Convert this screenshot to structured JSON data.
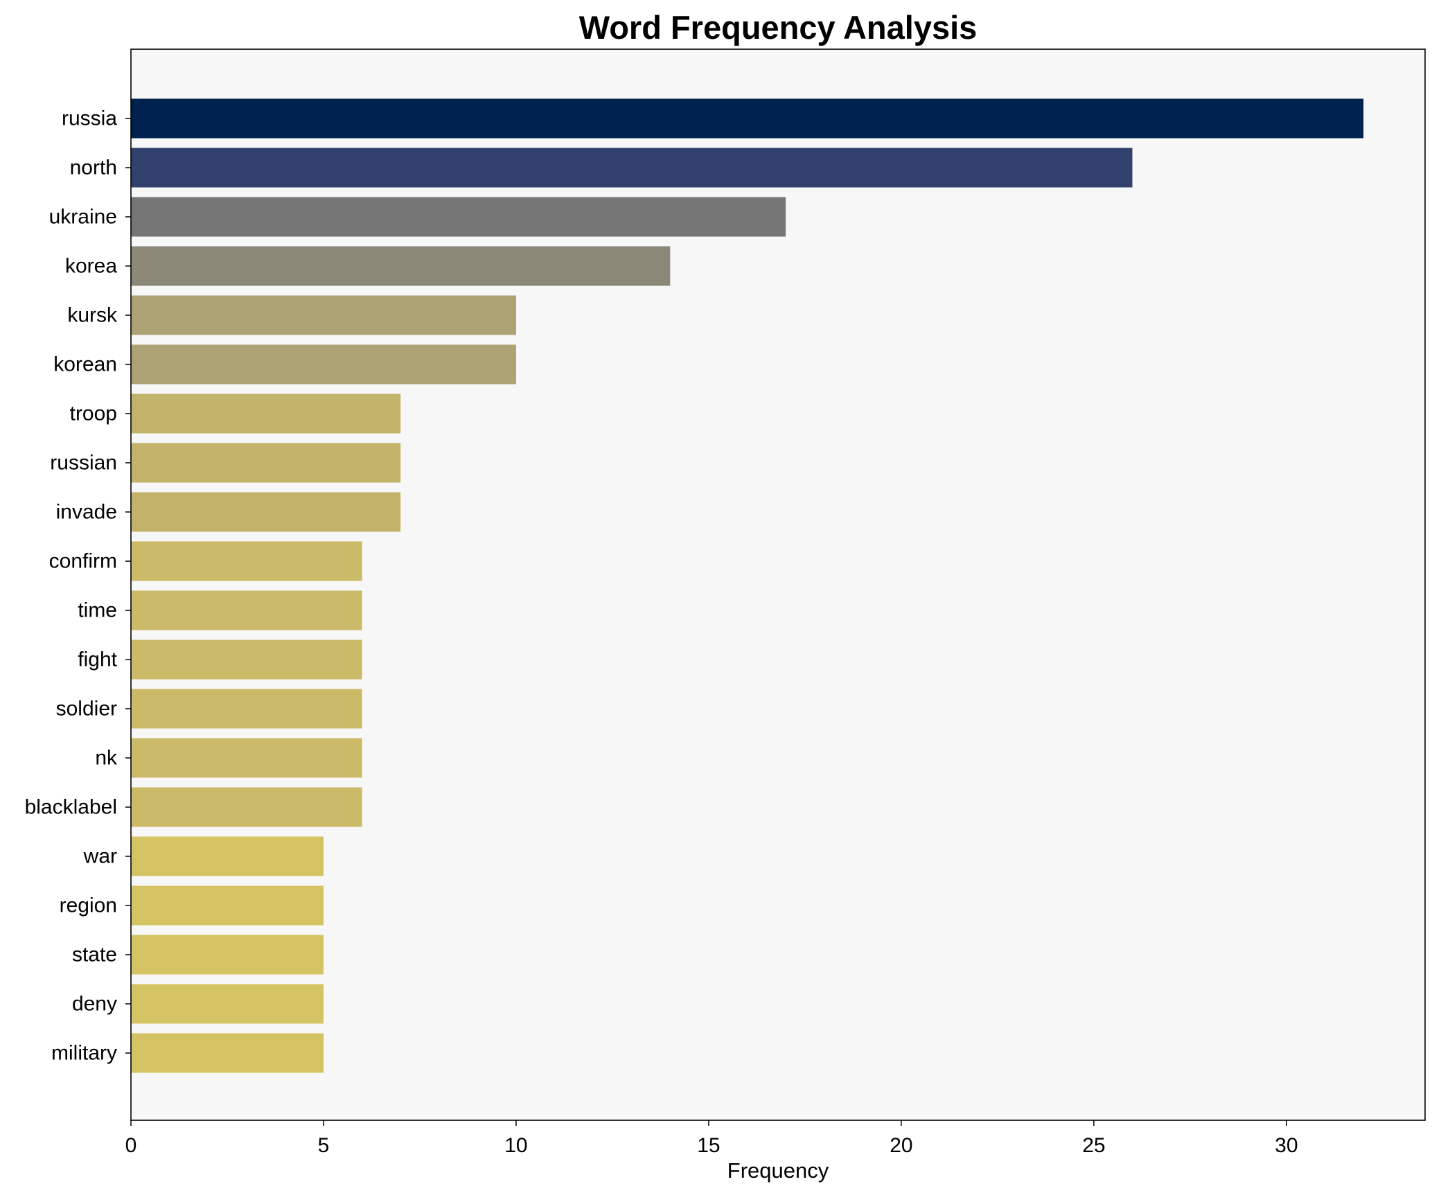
{
  "chart_data": {
    "type": "bar",
    "orientation": "horizontal",
    "title": "Word Frequency Analysis",
    "xlabel": "Frequency",
    "ylabel": "",
    "xlim": [
      0,
      33.6
    ],
    "xticks": [
      0,
      5,
      10,
      15,
      20,
      25,
      30
    ],
    "grid": false,
    "background": "#f7f7f7",
    "categories": [
      "russia",
      "north",
      "ukraine",
      "korea",
      "kursk",
      "korean",
      "troop",
      "russian",
      "invade",
      "confirm",
      "time",
      "fight",
      "soldier",
      "nk",
      "blacklabel",
      "war",
      "region",
      "state",
      "deny",
      "military"
    ],
    "values": [
      32,
      26,
      17,
      14,
      10,
      10,
      7,
      7,
      7,
      6,
      6,
      6,
      6,
      6,
      6,
      5,
      5,
      5,
      5,
      5
    ],
    "colors": [
      "#00224e",
      "#32406e",
      "#767676",
      "#8b8878",
      "#ada274",
      "#ada274",
      "#c3b36a",
      "#c3b36a",
      "#c3b36a",
      "#cbba68",
      "#cbba68",
      "#cbba68",
      "#cbba68",
      "#cbba68",
      "#cbba68",
      "#d4c362",
      "#d4c362",
      "#d4c362",
      "#d4c362",
      "#d4c362"
    ]
  }
}
